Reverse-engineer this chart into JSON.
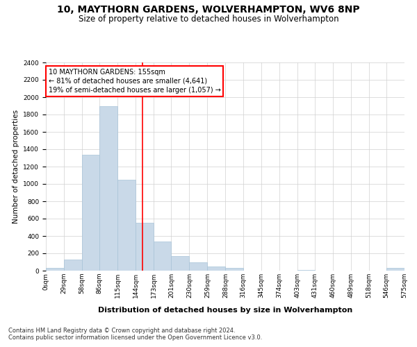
{
  "title": "10, MAYTHORN GARDENS, WOLVERHAMPTON, WV6 8NP",
  "subtitle": "Size of property relative to detached houses in Wolverhampton",
  "xlabel": "Distribution of detached houses by size in Wolverhampton",
  "ylabel": "Number of detached properties",
  "footer_line1": "Contains HM Land Registry data © Crown copyright and database right 2024.",
  "footer_line2": "Contains public sector information licensed under the Open Government Licence v3.0.",
  "annotation_title": "10 MAYTHORN GARDENS: 155sqm",
  "annotation_line2": "← 81% of detached houses are smaller (4,641)",
  "annotation_line3": "19% of semi-detached houses are larger (1,057) →",
  "property_size": 155,
  "bar_color": "#c9d9e8",
  "bar_edge_color": "#a8c4d8",
  "redline_color": "red",
  "grid_color": "#d0d0d0",
  "background_color": "#ffffff",
  "bins": [
    0,
    29,
    58,
    86,
    115,
    144,
    173,
    201,
    230,
    259,
    288,
    316,
    345,
    374,
    403,
    431,
    460,
    489,
    518,
    546,
    575
  ],
  "bin_labels": [
    "0sqm",
    "29sqm",
    "58sqm",
    "86sqm",
    "115sqm",
    "144sqm",
    "173sqm",
    "201sqm",
    "230sqm",
    "259sqm",
    "288sqm",
    "316sqm",
    "345sqm",
    "374sqm",
    "403sqm",
    "431sqm",
    "460sqm",
    "489sqm",
    "518sqm",
    "546sqm",
    "575sqm"
  ],
  "bar_heights": [
    30,
    130,
    1340,
    1900,
    1050,
    550,
    340,
    170,
    100,
    50,
    30,
    0,
    0,
    0,
    10,
    0,
    0,
    0,
    0,
    30
  ],
  "ylim": [
    0,
    2400
  ],
  "yticks": [
    0,
    200,
    400,
    600,
    800,
    1000,
    1200,
    1400,
    1600,
    1800,
    2000,
    2200,
    2400
  ],
  "title_fontsize": 10,
  "subtitle_fontsize": 8.5,
  "ylabel_fontsize": 7.5,
  "xlabel_fontsize": 8,
  "tick_fontsize": 6.5,
  "annotation_fontsize": 7,
  "footer_fontsize": 6
}
